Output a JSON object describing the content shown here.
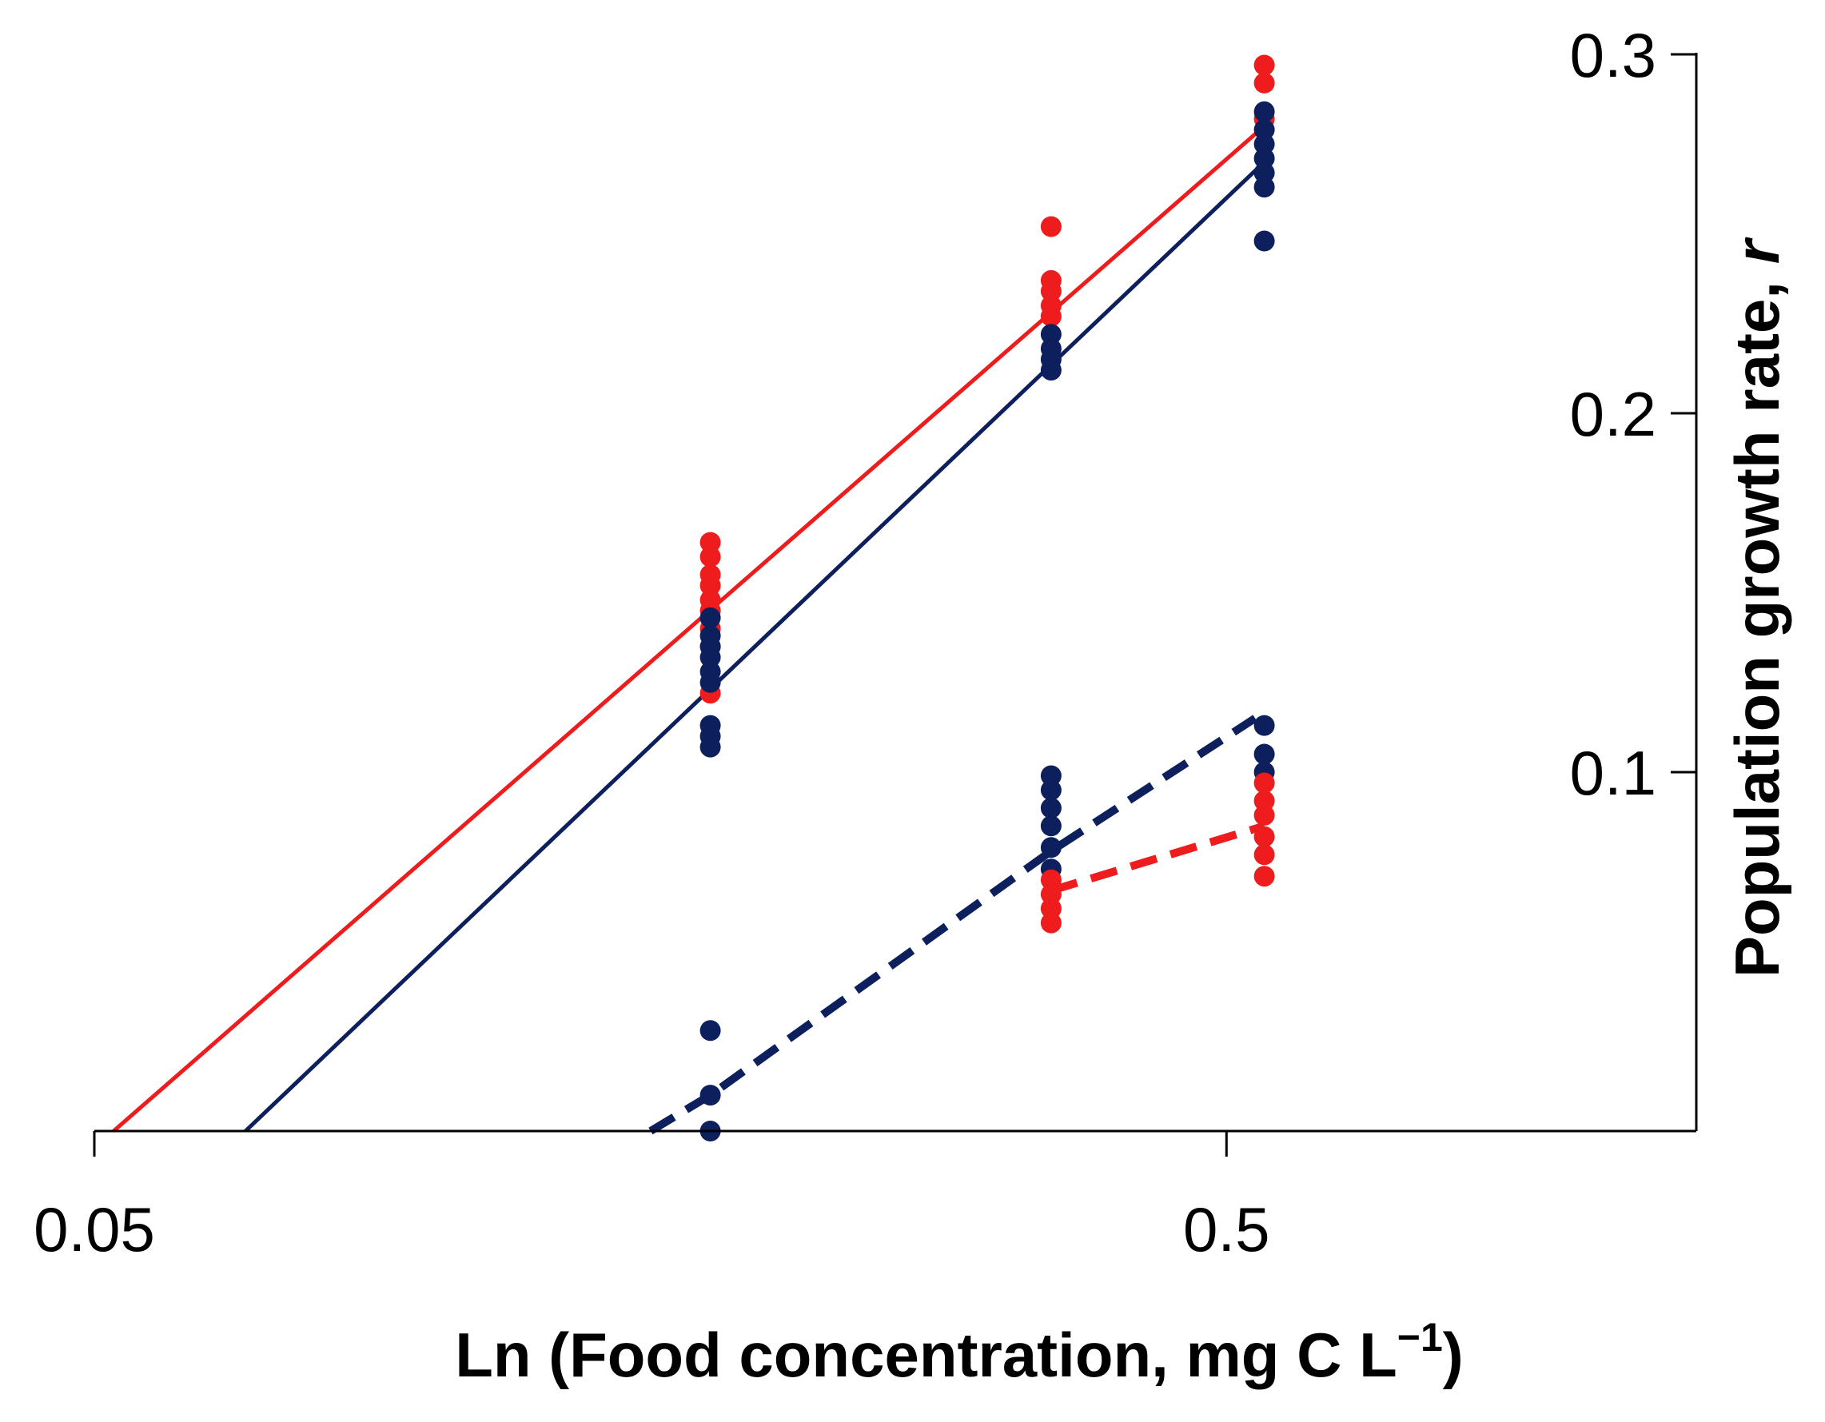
{
  "chart_data": {
    "type": "scatter",
    "title": "",
    "xlabel": "Ln (Food concentration, mg C L",
    "xlabel_sup": "−1",
    "xlabel_close": ")",
    "ylabel": "Population growth rate, ",
    "ylabel_var": "r",
    "x_scale": "log",
    "xlim": [
      0.05,
      1.3
    ],
    "ylim": [
      0.0,
      0.3
    ],
    "x_ticks": [
      {
        "value": 0.05,
        "label": "0.05"
      },
      {
        "value": 0.5,
        "label": "0.5"
      }
    ],
    "y_ticks": [
      {
        "value": 0.1,
        "label": "0.1"
      },
      {
        "value": 0.2,
        "label": "0.2"
      },
      {
        "value": 0.3,
        "label": "0.3"
      }
    ],
    "y_axis_side": "right",
    "grid": false,
    "colors": {
      "red": "#ee1c1c",
      "navy": "#0d1f5c"
    },
    "series": [
      {
        "name": "red-solid",
        "color": "#ee1c1c",
        "marker": true,
        "points": [
          {
            "x": 0.175,
            "y": 0.164
          },
          {
            "x": 0.175,
            "y": 0.16
          },
          {
            "x": 0.175,
            "y": 0.155
          },
          {
            "x": 0.175,
            "y": 0.152
          },
          {
            "x": 0.175,
            "y": 0.148
          },
          {
            "x": 0.175,
            "y": 0.145
          },
          {
            "x": 0.175,
            "y": 0.14
          },
          {
            "x": 0.175,
            "y": 0.135
          },
          {
            "x": 0.175,
            "y": 0.122
          },
          {
            "x": 0.35,
            "y": 0.252
          },
          {
            "x": 0.35,
            "y": 0.237
          },
          {
            "x": 0.35,
            "y": 0.234
          },
          {
            "x": 0.35,
            "y": 0.23
          },
          {
            "x": 0.35,
            "y": 0.227
          },
          {
            "x": 0.54,
            "y": 0.297
          },
          {
            "x": 0.54,
            "y": 0.292
          },
          {
            "x": 0.54,
            "y": 0.282
          }
        ],
        "line": {
          "style": "solid",
          "points": [
            {
              "x": 0.052,
              "y": 0.0
            },
            {
              "x": 0.54,
              "y": 0.28
            }
          ]
        }
      },
      {
        "name": "navy-solid",
        "color": "#0d1f5c",
        "marker": true,
        "points": [
          {
            "x": 0.175,
            "y": 0.143
          },
          {
            "x": 0.175,
            "y": 0.138
          },
          {
            "x": 0.175,
            "y": 0.135
          },
          {
            "x": 0.175,
            "y": 0.132
          },
          {
            "x": 0.175,
            "y": 0.128
          },
          {
            "x": 0.175,
            "y": 0.125
          },
          {
            "x": 0.175,
            "y": 0.113
          },
          {
            "x": 0.175,
            "y": 0.11
          },
          {
            "x": 0.175,
            "y": 0.107
          },
          {
            "x": 0.35,
            "y": 0.222
          },
          {
            "x": 0.35,
            "y": 0.218
          },
          {
            "x": 0.35,
            "y": 0.215
          },
          {
            "x": 0.35,
            "y": 0.212
          },
          {
            "x": 0.54,
            "y": 0.284
          },
          {
            "x": 0.54,
            "y": 0.279
          },
          {
            "x": 0.54,
            "y": 0.275
          },
          {
            "x": 0.54,
            "y": 0.271
          },
          {
            "x": 0.54,
            "y": 0.267
          },
          {
            "x": 0.54,
            "y": 0.263
          },
          {
            "x": 0.54,
            "y": 0.248
          }
        ],
        "line": {
          "style": "solid",
          "points": [
            {
              "x": 0.068,
              "y": 0.0
            },
            {
              "x": 0.54,
              "y": 0.27
            }
          ]
        }
      },
      {
        "name": "navy-dashed",
        "color": "#0d1f5c",
        "marker": true,
        "points": [
          {
            "x": 0.175,
            "y": 0.028
          },
          {
            "x": 0.175,
            "y": 0.01
          },
          {
            "x": 0.175,
            "y": 0.0
          },
          {
            "x": 0.35,
            "y": 0.099
          },
          {
            "x": 0.35,
            "y": 0.095
          },
          {
            "x": 0.35,
            "y": 0.09
          },
          {
            "x": 0.35,
            "y": 0.085
          },
          {
            "x": 0.35,
            "y": 0.079
          },
          {
            "x": 0.35,
            "y": 0.073
          },
          {
            "x": 0.54,
            "y": 0.113
          },
          {
            "x": 0.54,
            "y": 0.105
          },
          {
            "x": 0.54,
            "y": 0.1
          }
        ],
        "line": {
          "style": "dashed",
          "points": [
            {
              "x": 0.155,
              "y": 0.0
            },
            {
              "x": 0.175,
              "y": 0.01
            },
            {
              "x": 0.35,
              "y": 0.078
            },
            {
              "x": 0.53,
              "y": 0.115
            }
          ]
        }
      },
      {
        "name": "red-dashed",
        "color": "#ee1c1c",
        "marker": true,
        "points": [
          {
            "x": 0.35,
            "y": 0.07
          },
          {
            "x": 0.35,
            "y": 0.066
          },
          {
            "x": 0.35,
            "y": 0.062
          },
          {
            "x": 0.35,
            "y": 0.058
          },
          {
            "x": 0.54,
            "y": 0.097
          },
          {
            "x": 0.54,
            "y": 0.092
          },
          {
            "x": 0.54,
            "y": 0.088
          },
          {
            "x": 0.54,
            "y": 0.082
          },
          {
            "x": 0.54,
            "y": 0.077
          },
          {
            "x": 0.54,
            "y": 0.071
          }
        ],
        "line": {
          "style": "dashed",
          "points": [
            {
              "x": 0.35,
              "y": 0.067
            },
            {
              "x": 0.54,
              "y": 0.085
            }
          ]
        }
      }
    ]
  }
}
